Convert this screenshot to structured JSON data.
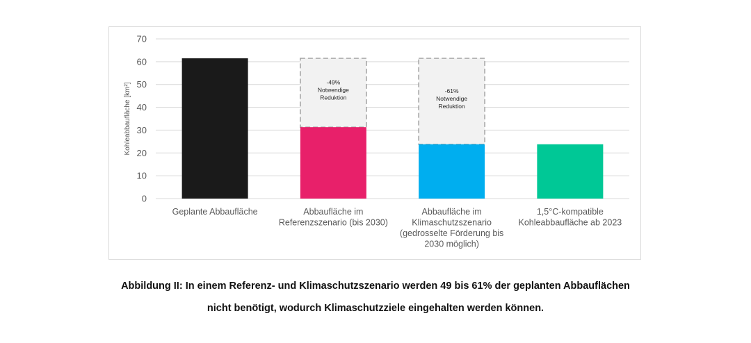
{
  "chart_data": {
    "type": "bar",
    "ylabel": "Kohleabbaufläche [km²]",
    "ylim": [
      0,
      70
    ],
    "yticks": [
      0,
      10,
      20,
      30,
      40,
      50,
      60,
      70
    ],
    "grid": true,
    "categories": [
      [
        "Geplante Abbaufläche"
      ],
      [
        "Abbaufläche im",
        "Referenzszenario (bis 2030)"
      ],
      [
        "Abbaufläche im",
        "Klimaschutzszenario",
        "(gedrosselte Förderung bis",
        "2030 möglich)"
      ],
      [
        "1,5°C-kompatible",
        "Kohleabbaufläche ab 2023"
      ]
    ],
    "values": [
      61.5,
      31.3,
      23.8,
      23.8
    ],
    "colors": [
      "#1a1a1a",
      "#e8206a",
      "#00aeef",
      "#00c896"
    ],
    "reduction": {
      "top_value": 61.5,
      "fill": "#f2f2f2",
      "stroke": "#a6a6a6",
      "labels": [
        null,
        [
          "-49%",
          "Notwendige",
          "Reduktion"
        ],
        [
          "-61%",
          "Notwendige",
          "Reduktion"
        ],
        null
      ]
    }
  },
  "caption": {
    "line1": "Abbildung II: In einem Referenz- und Klimaschutzszenario werden 49 bis 61% der geplanten Abbauflächen",
    "line2": "nicht benötigt, wodurch Klimaschutzziele eingehalten werden können."
  }
}
